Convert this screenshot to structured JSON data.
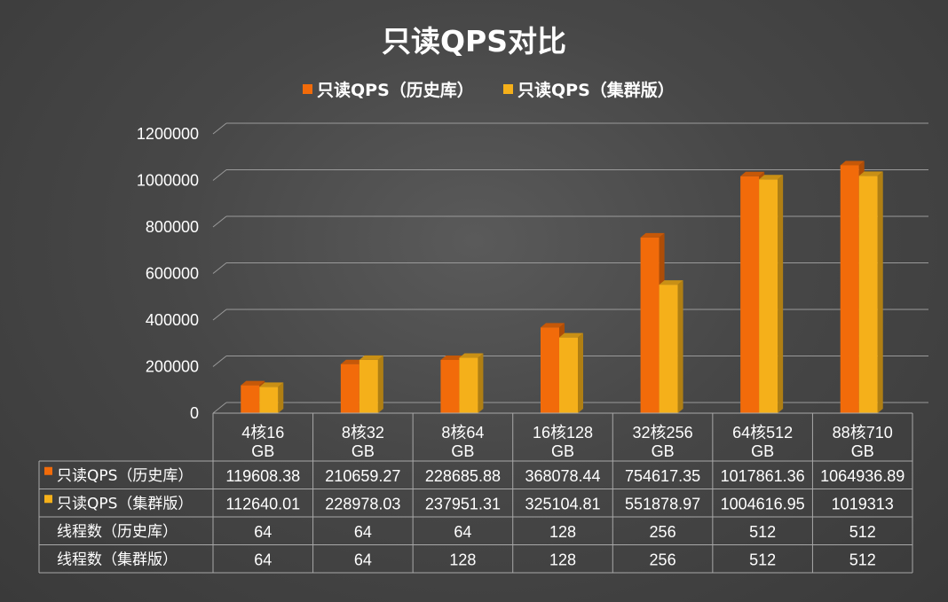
{
  "chart_data": {
    "type": "bar",
    "title": "只读QPS对比",
    "categories": [
      [
        "4核16",
        "GB"
      ],
      [
        "8核32",
        "GB"
      ],
      [
        "8核64",
        "GB"
      ],
      [
        "16核128",
        "GB"
      ],
      [
        "32核256",
        "GB"
      ],
      [
        "64核512",
        "GB"
      ],
      [
        "88核710",
        "GB"
      ]
    ],
    "series": [
      {
        "name": "只读QPS（历史库）",
        "color": "#f26b0a",
        "values": [
          119608.38,
          210659.27,
          228685.88,
          368078.44,
          754617.35,
          1017861.36,
          1064936.89
        ],
        "labels": [
          "119608.38",
          "210659.27",
          "228685.88",
          "368078.44",
          "754617.35",
          "1017861.36",
          "1064936.89"
        ]
      },
      {
        "name": "只读QPS（集群版）",
        "color": "#f5b01a",
        "values": [
          112640.01,
          228978.03,
          237951.31,
          325104.81,
          551878.97,
          1004616.95,
          1019313
        ],
        "labels": [
          "112640.01",
          "228978.03",
          "237951.31",
          "325104.81",
          "551878.97",
          "1004616.95",
          "1019313"
        ]
      }
    ],
    "yticks": [
      "0",
      "200000",
      "400000",
      "600000",
      "800000",
      "1000000",
      "1200000"
    ],
    "ylim": [
      0,
      1200000
    ],
    "grid": true,
    "legend": "top",
    "extra_rows": [
      {
        "name": "线程数（历史库）",
        "values": [
          "64",
          "64",
          "64",
          "128",
          "256",
          "512",
          "512"
        ]
      },
      {
        "name": "线程数（集群版）",
        "values": [
          "64",
          "64",
          "128",
          "128",
          "256",
          "512",
          "512"
        ]
      }
    ]
  }
}
